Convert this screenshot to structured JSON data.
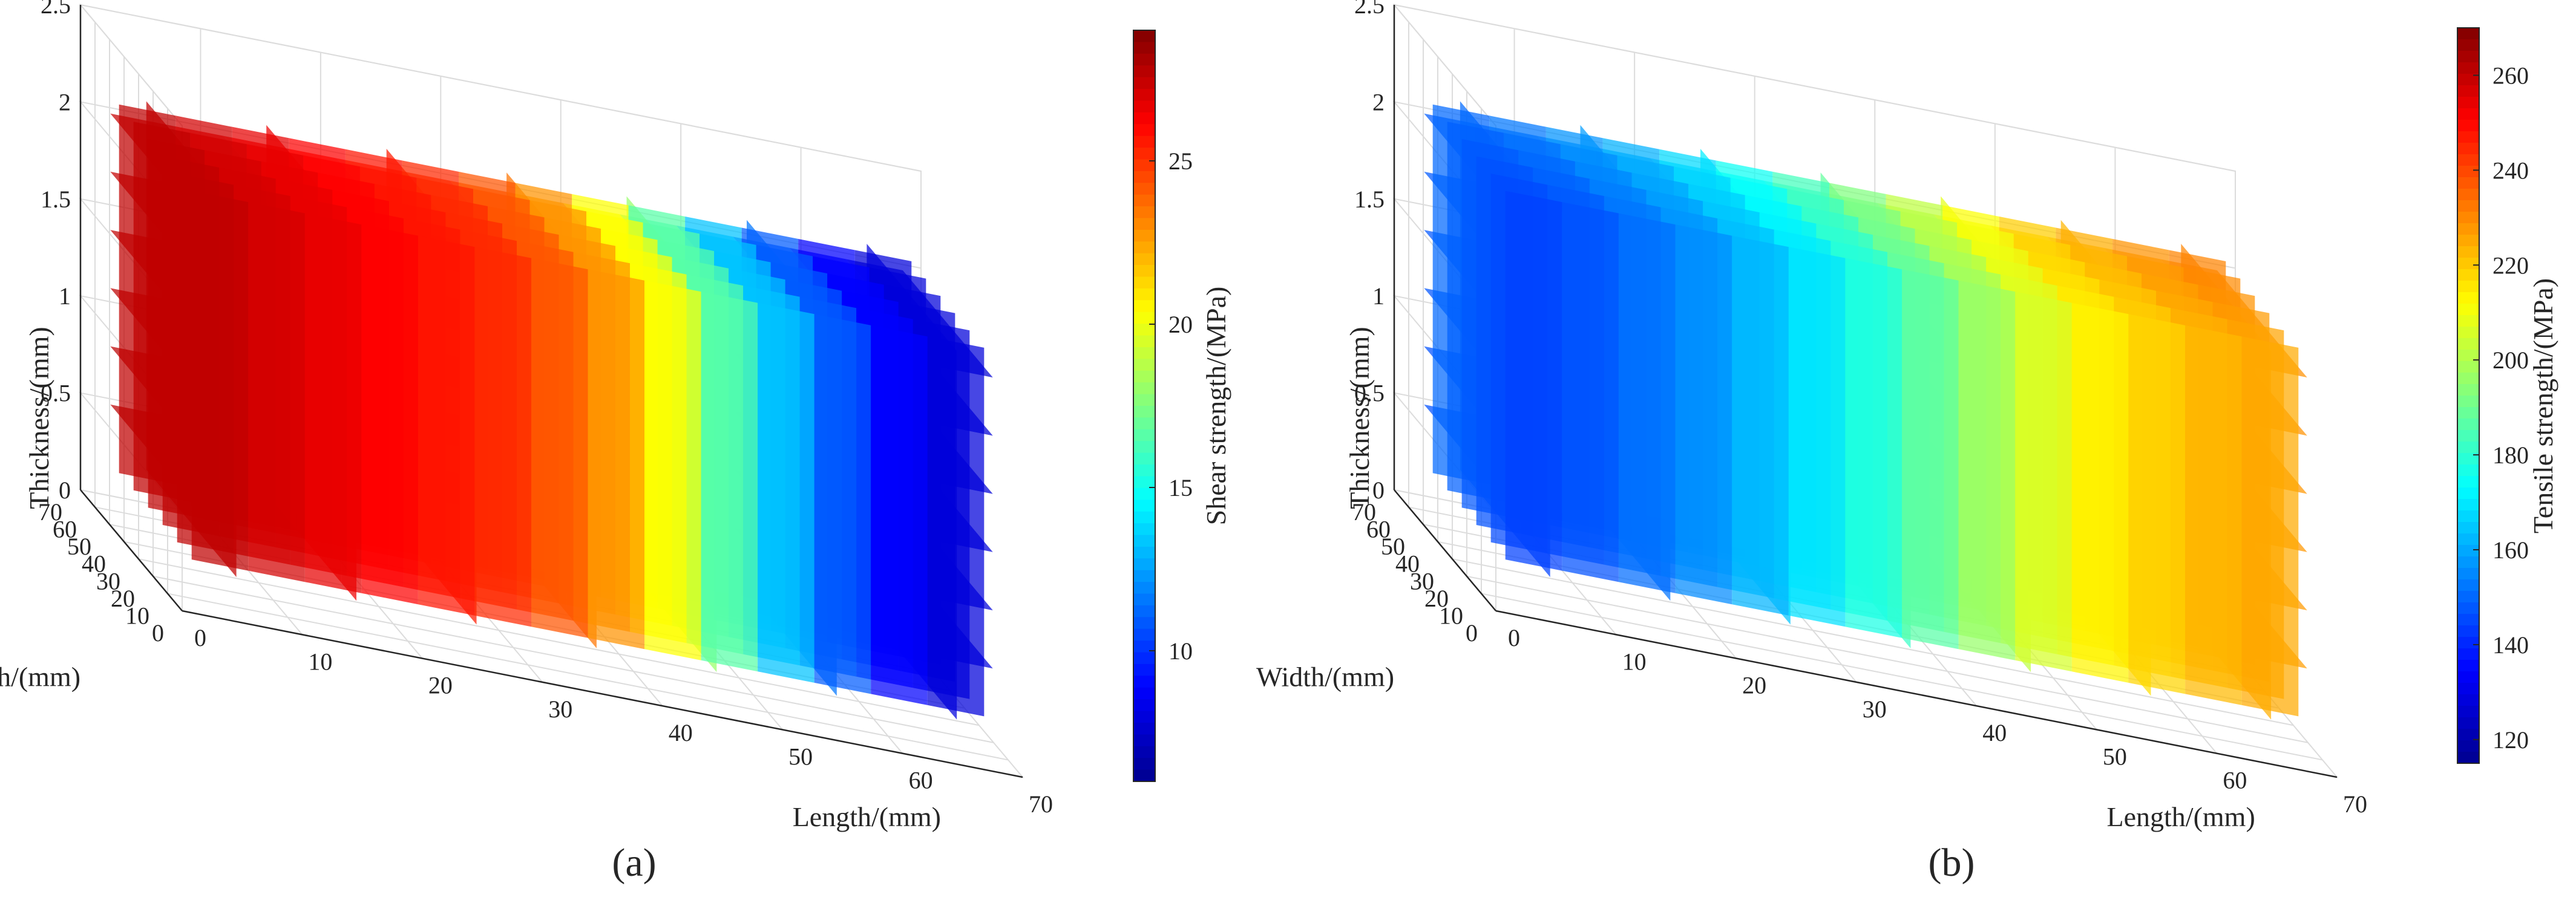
{
  "figure": {
    "panel_labels": [
      "(a)",
      "(b)"
    ]
  },
  "colormap": [
    "#00008f",
    "#0000ff",
    "#0080ff",
    "#00ffff",
    "#80ff80",
    "#ffff00",
    "#ff8000",
    "#ff0000",
    "#800000"
  ],
  "chart_data": [
    {
      "type": "heatmap",
      "subtype": "3d-slice-volume",
      "title": "",
      "xlabel": "Length/(mm)",
      "ylabel": "Width/(mm)",
      "zlabel": "Thickness/(mm)",
      "xlim": [
        0,
        70
      ],
      "ylim": [
        0,
        70
      ],
      "zlim": [
        0,
        2.5
      ],
      "x_ticks": [
        "0",
        "10",
        "20",
        "30",
        "40",
        "50",
        "60",
        "70"
      ],
      "y_ticks": [
        "0",
        "10",
        "20",
        "30",
        "40",
        "50",
        "60",
        "70"
      ],
      "z_ticks": [
        "0",
        "0.5",
        "1",
        "1.5",
        "2",
        "2.5"
      ],
      "grid": true,
      "colorbar": {
        "label": "Shear strength/(MPa)",
        "range": [
          6,
          29
        ],
        "ticks": [
          "10",
          "15",
          "20",
          "25"
        ]
      },
      "slices": {
        "length_mm": [
          5,
          15,
          25,
          35,
          45,
          55,
          65
        ],
        "width_mm": [
          10,
          20,
          30,
          40,
          50,
          60
        ],
        "thickness_mm": [
          0.5,
          0.8,
          1.1,
          1.4,
          1.7,
          2.0
        ]
      },
      "value_trend": {
        "along_length_mm": [
          0,
          10,
          20,
          30,
          40,
          50,
          60,
          70
        ],
        "mpa": [
          28,
          27,
          26,
          25,
          22,
          14,
          9,
          7
        ]
      }
    },
    {
      "type": "heatmap",
      "subtype": "3d-slice-volume",
      "title": "",
      "xlabel": "Length/(mm)",
      "ylabel": "Width/(mm)",
      "zlabel": "Thickness/(mm)",
      "xlim": [
        0,
        70
      ],
      "ylim": [
        0,
        70
      ],
      "zlim": [
        0,
        2.5
      ],
      "x_ticks": [
        "0",
        "10",
        "20",
        "30",
        "40",
        "50",
        "60",
        "70"
      ],
      "y_ticks": [
        "0",
        "10",
        "20",
        "30",
        "40",
        "50",
        "60",
        "70"
      ],
      "z_ticks": [
        "0",
        "0.5",
        "1",
        "1.5",
        "2",
        "2.5"
      ],
      "grid": true,
      "colorbar": {
        "label": "Tensile strength/(MPa)",
        "range": [
          115,
          270
        ],
        "ticks": [
          "120",
          "140",
          "160",
          "180",
          "200",
          "220",
          "240",
          "260"
        ]
      },
      "slices": {
        "length_mm": [
          5,
          15,
          25,
          35,
          45,
          55,
          65
        ],
        "width_mm": [
          10,
          20,
          30,
          40,
          50,
          60
        ],
        "thickness_mm": [
          0.5,
          0.8,
          1.1,
          1.4,
          1.7,
          2.0
        ]
      },
      "value_trend": {
        "along_length_mm": [
          0,
          10,
          20,
          30,
          40,
          50,
          60,
          70
        ],
        "mpa": [
          145,
          150,
          160,
          175,
          195,
          215,
          225,
          230
        ]
      }
    }
  ]
}
